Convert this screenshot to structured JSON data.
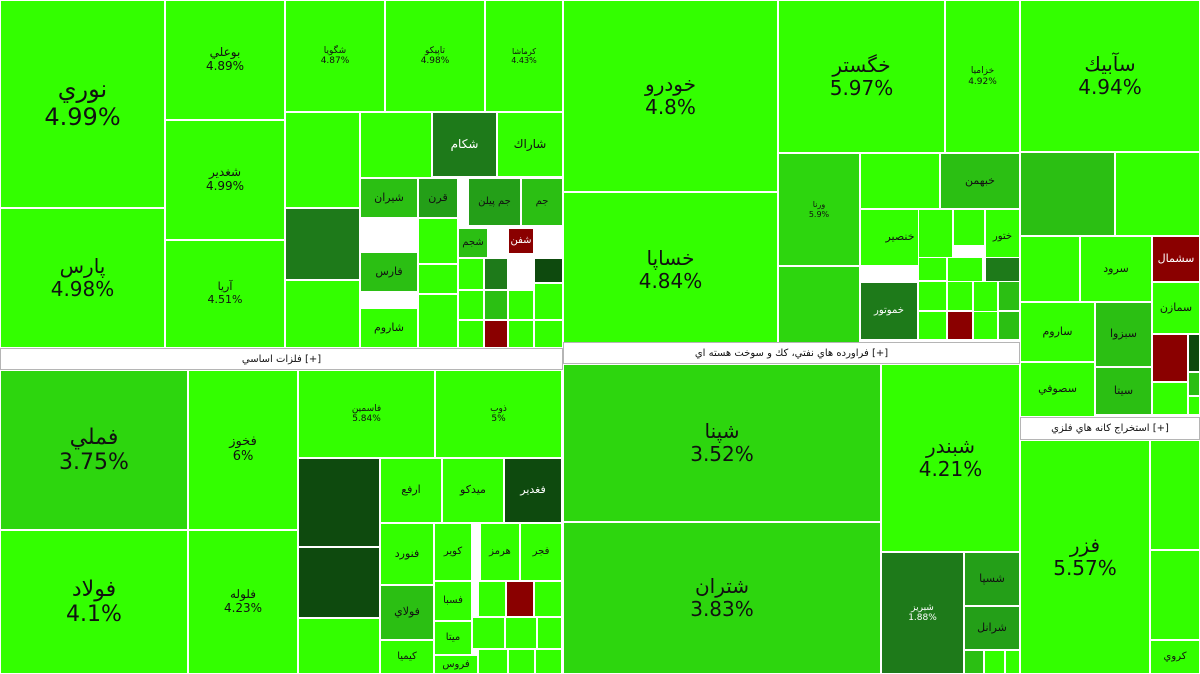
{
  "chart_data": {
    "type": "treemap",
    "title": "",
    "sectors": [
      {
        "name": "",
        "tiles": [
          {
            "name": "نوري",
            "change": "4.99%"
          },
          {
            "name": "پارس",
            "change": "4.98%"
          },
          {
            "name": "بوعلي",
            "change": "4.89%"
          },
          {
            "name": "شغدير",
            "change": "4.99%"
          },
          {
            "name": "آريا",
            "change": "4.51%"
          },
          {
            "name": "شگويا",
            "change": "4.87%"
          },
          {
            "name": "تاپيكو",
            "change": "4.98%"
          },
          {
            "name": "كرماشا",
            "change": "4.43%"
          },
          {
            "name": "شكام",
            "change": ""
          },
          {
            "name": "شاراك",
            "change": ""
          },
          {
            "name": "شيران",
            "change": ""
          },
          {
            "name": "فارس",
            "change": ""
          },
          {
            "name": "شاروم",
            "change": ""
          },
          {
            "name": "قرن",
            "change": ""
          },
          {
            "name": "جم پيلن",
            "change": ""
          },
          {
            "name": "جم",
            "change": ""
          },
          {
            "name": "شجم",
            "change": ""
          },
          {
            "name": "شفن",
            "change": ""
          }
        ]
      },
      {
        "name": "فلزات اساسي [+]",
        "tiles": [
          {
            "name": "فملي",
            "change": "3.75%"
          },
          {
            "name": "فولاد",
            "change": "4.1%"
          },
          {
            "name": "فخوز",
            "change": "6%"
          },
          {
            "name": "فلوله",
            "change": "4.23%"
          },
          {
            "name": "فاسمين",
            "change": "5.84%"
          },
          {
            "name": "ذوب",
            "change": "5%"
          },
          {
            "name": "ارفع",
            "change": ""
          },
          {
            "name": "ميدكو",
            "change": ""
          },
          {
            "name": "فغدير",
            "change": ""
          },
          {
            "name": "فنورد",
            "change": ""
          },
          {
            "name": "كوير",
            "change": ""
          },
          {
            "name": "هرمز",
            "change": ""
          },
          {
            "name": "فجر",
            "change": ""
          },
          {
            "name": "فولاي",
            "change": ""
          },
          {
            "name": "فسبا",
            "change": ""
          },
          {
            "name": "ميتا",
            "change": ""
          },
          {
            "name": "كيميا",
            "change": ""
          },
          {
            "name": "فروس",
            "change": ""
          }
        ]
      },
      {
        "name": "",
        "tiles": [
          {
            "name": "خودرو",
            "change": "4.8%"
          },
          {
            "name": "خساپا",
            "change": "4.84%"
          },
          {
            "name": "خگستر",
            "change": "5.97%"
          },
          {
            "name": "خزاميا",
            "change": "4.92%"
          },
          {
            "name": "ورنا",
            "change": "5.9%"
          },
          {
            "name": "خبهمن",
            "change": ""
          },
          {
            "name": "خنصير",
            "change": ""
          },
          {
            "name": "خموتور",
            "change": ""
          },
          {
            "name": "ختور",
            "change": ""
          }
        ]
      },
      {
        "name": "فراورده هاي نفتي، كك و سوخت هسته اي [+]",
        "tiles": [
          {
            "name": "شپنا",
            "change": "3.52%"
          },
          {
            "name": "شتران",
            "change": "3.83%"
          },
          {
            "name": "شبندر",
            "change": "4.21%"
          },
          {
            "name": "شبريز",
            "change": "1.88%"
          },
          {
            "name": "شسپا",
            "change": ""
          },
          {
            "name": "شرانل",
            "change": ""
          }
        ]
      },
      {
        "name": "",
        "tiles": [
          {
            "name": "سآبيك",
            "change": "4.94%"
          },
          {
            "name": "سشمال",
            "change": ""
          },
          {
            "name": "سرود",
            "change": ""
          },
          {
            "name": "سمازن",
            "change": ""
          },
          {
            "name": "ساروم",
            "change": ""
          },
          {
            "name": "سبزوا",
            "change": ""
          },
          {
            "name": "سصوفي",
            "change": ""
          },
          {
            "name": "سيتا",
            "change": ""
          }
        ]
      },
      {
        "name": "استخراج كانه هاي فلزي [+]",
        "tiles": [
          {
            "name": "فزر",
            "change": "5.57%"
          },
          {
            "name": "كروي",
            "change": ""
          }
        ]
      }
    ],
    "colors": {
      "bright": "#33ff00",
      "light": "#2dd60e",
      "medium": "#2bbf13",
      "mid": "#249f18",
      "dark": "#1e7a1a",
      "deep": "#0e4a0e",
      "loss": "#8a0000"
    }
  }
}
